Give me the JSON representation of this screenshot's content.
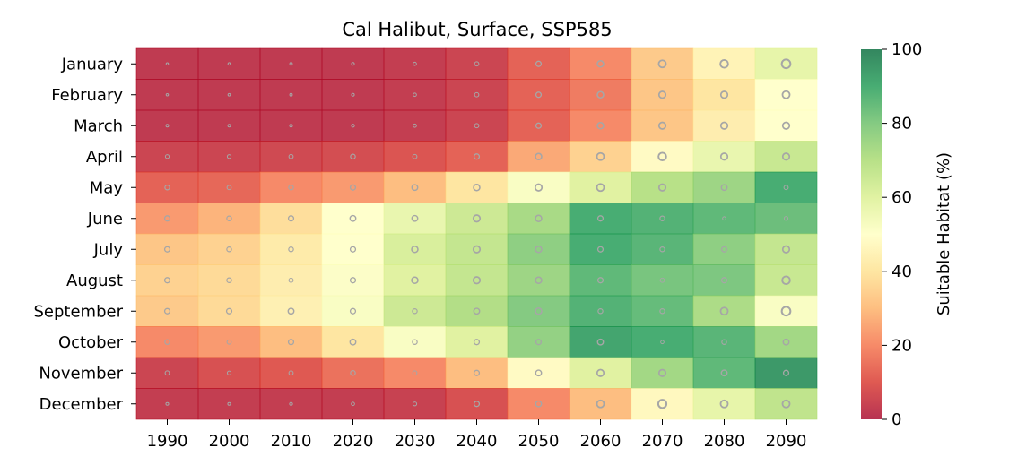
{
  "chart_data": {
    "type": "heatmap",
    "title": "Cal Halibut, Surface, SSP585",
    "xlabel": "",
    "ylabel": "",
    "x": [
      "1990",
      "2000",
      "2010",
      "2020",
      "2030",
      "2040",
      "2050",
      "2060",
      "2070",
      "2080",
      "2090"
    ],
    "y": [
      "January",
      "February",
      "March",
      "April",
      "May",
      "June",
      "July",
      "August",
      "September",
      "October",
      "November",
      "December"
    ],
    "values": [
      [
        2,
        2,
        2,
        2,
        3,
        5,
        12,
        20,
        33,
        45,
        58
      ],
      [
        2,
        2,
        2,
        2,
        3,
        5,
        12,
        17,
        32,
        40,
        50
      ],
      [
        2,
        2,
        2,
        2,
        3,
        5,
        12,
        20,
        32,
        43,
        50
      ],
      [
        5,
        5,
        6,
        7,
        9,
        12,
        26,
        35,
        48,
        57,
        66
      ],
      [
        12,
        13,
        20,
        23,
        30,
        40,
        52,
        60,
        70,
        75,
        90
      ],
      [
        23,
        28,
        38,
        50,
        57,
        65,
        73,
        90,
        88,
        86,
        84
      ],
      [
        32,
        35,
        42,
        50,
        62,
        67,
        78,
        90,
        87,
        78,
        67
      ],
      [
        35,
        37,
        43,
        51,
        60,
        67,
        75,
        86,
        82,
        81,
        66
      ],
      [
        33,
        37,
        44,
        52,
        65,
        71,
        80,
        88,
        85,
        72,
        52
      ],
      [
        20,
        23,
        30,
        40,
        52,
        60,
        77,
        92,
        90,
        87,
        74
      ],
      [
        5,
        8,
        10,
        15,
        20,
        30,
        48,
        60,
        74,
        86,
        95
      ],
      [
        3,
        3,
        3,
        3,
        4,
        8,
        20,
        30,
        47,
        58,
        68
      ]
    ],
    "uncertainty": [
      [
        0.05,
        0.06,
        0.08,
        0.1,
        0.15,
        0.25,
        0.35,
        0.45,
        0.55,
        0.6,
        0.7
      ],
      [
        0.05,
        0.06,
        0.08,
        0.1,
        0.15,
        0.25,
        0.35,
        0.45,
        0.5,
        0.5,
        0.55
      ],
      [
        0.08,
        0.08,
        0.1,
        0.12,
        0.15,
        0.25,
        0.35,
        0.45,
        0.5,
        0.5,
        0.5
      ],
      [
        0.2,
        0.2,
        0.25,
        0.3,
        0.25,
        0.35,
        0.45,
        0.55,
        0.6,
        0.5,
        0.5
      ],
      [
        0.3,
        0.25,
        0.3,
        0.35,
        0.4,
        0.45,
        0.5,
        0.55,
        0.5,
        0.4,
        0.25
      ],
      [
        0.35,
        0.3,
        0.35,
        0.4,
        0.4,
        0.5,
        0.45,
        0.35,
        0.3,
        0.15,
        0.2
      ],
      [
        0.35,
        0.3,
        0.3,
        0.35,
        0.45,
        0.5,
        0.45,
        0.35,
        0.3,
        0.35,
        0.5
      ],
      [
        0.35,
        0.3,
        0.25,
        0.35,
        0.45,
        0.5,
        0.45,
        0.35,
        0.25,
        0.35,
        0.6
      ],
      [
        0.35,
        0.35,
        0.4,
        0.35,
        0.3,
        0.4,
        0.45,
        0.3,
        0.3,
        0.55,
        0.7
      ],
      [
        0.3,
        0.25,
        0.35,
        0.4,
        0.3,
        0.35,
        0.35,
        0.4,
        0.15,
        0.3,
        0.4
      ],
      [
        0.25,
        0.2,
        0.25,
        0.3,
        0.25,
        0.35,
        0.4,
        0.5,
        0.5,
        0.4,
        0.35
      ],
      [
        0.1,
        0.1,
        0.12,
        0.15,
        0.2,
        0.35,
        0.4,
        0.55,
        0.65,
        0.55,
        0.55
      ]
    ],
    "colorbar": {
      "label": "Suitable Habitat (%)",
      "range": [
        0,
        100
      ],
      "ticks": [
        0,
        20,
        40,
        60,
        80,
        100
      ],
      "colormap": "RdYlGn",
      "stops": [
        "#a50026",
        "#d73027",
        "#f46d43",
        "#fdae61",
        "#fee08b",
        "#ffffbf",
        "#d9ef8b",
        "#a6d96a",
        "#66bd63",
        "#1a9850",
        "#006837"
      ]
    },
    "cell_opacity": 0.8,
    "marker_color": "#a6a6a6",
    "grid": false,
    "legend": "none"
  }
}
